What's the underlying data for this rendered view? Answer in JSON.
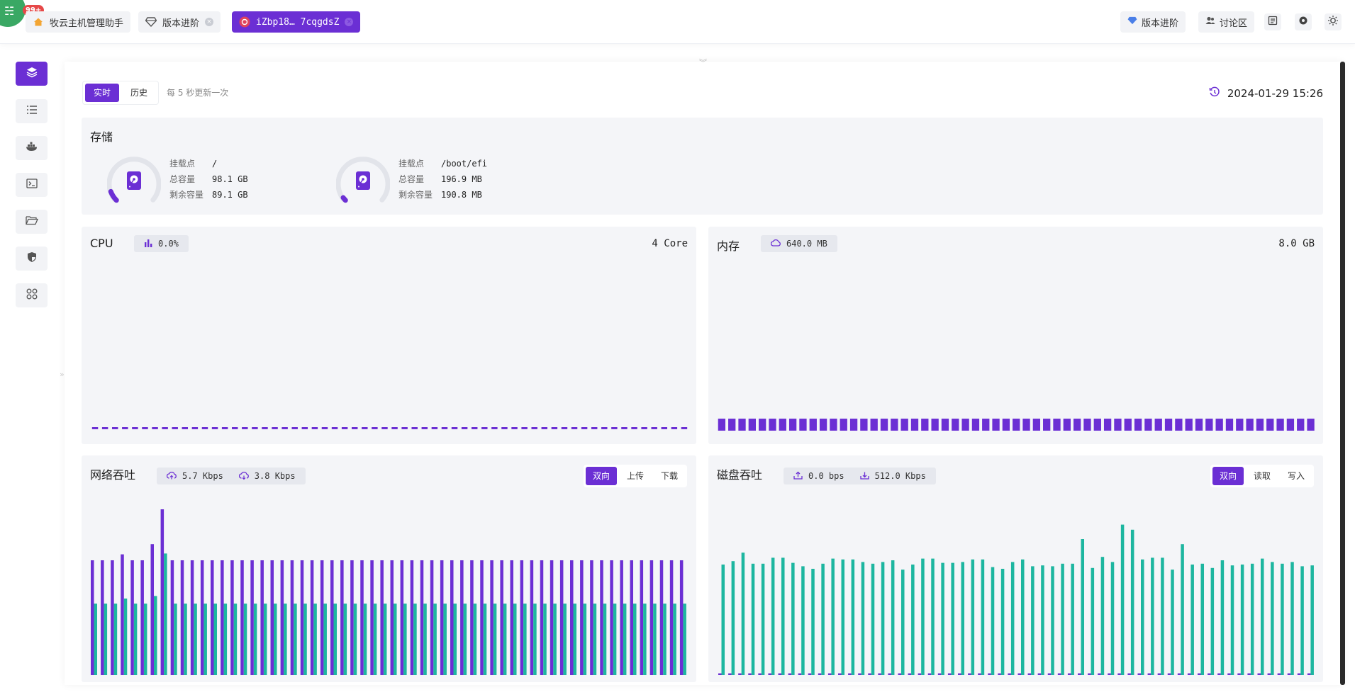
{
  "app": {
    "badge": "99+"
  },
  "tabs": [
    {
      "label": "牧云主机管理助手",
      "icon": "home-icon"
    },
    {
      "label": "版本进阶",
      "icon": "diamond-icon",
      "closable": true
    },
    {
      "label": "iZbp18… 7cqgdsZ",
      "icon": "server-icon",
      "closable": true,
      "active": true
    }
  ],
  "topbar_right": {
    "upgrade_label": "版本进阶",
    "forum_label": "讨论区",
    "icons": [
      "notes-icon",
      "settings-icon",
      "theme-sun-icon"
    ]
  },
  "sidebar": {
    "items": [
      {
        "icon": "layers-icon",
        "active": true
      },
      {
        "icon": "list-icon"
      },
      {
        "icon": "docker-icon"
      },
      {
        "icon": "terminal-icon"
      },
      {
        "icon": "folder-icon"
      },
      {
        "icon": "shield-icon"
      },
      {
        "icon": "apps-icon"
      }
    ]
  },
  "mode": {
    "realtime": "实时",
    "history": "历史",
    "update_note": "每 5 秒更新一次"
  },
  "timestamp": "2024-01-29 15:26",
  "storage": {
    "title": "存储",
    "labels": {
      "mount": "挂载点",
      "total": "总容量",
      "free": "剩余容量"
    },
    "disks": [
      {
        "mount": "/",
        "total": "98.1 GB",
        "free": "89.1 GB",
        "used_fraction": 0.09
      },
      {
        "mount": "/boot/efi",
        "total": "196.9 MB",
        "free": "190.8 MB",
        "used_fraction": 0.03
      }
    ]
  },
  "cpu": {
    "title": "CPU",
    "usage": "0.0%",
    "cores": "4 Core"
  },
  "memory": {
    "title": "内存",
    "used": "640.0 MB",
    "total": "8.0 GB"
  },
  "network": {
    "title": "网络吞吐",
    "upload": "5.7 Kbps",
    "download": "3.8 Kbps",
    "modes": [
      "双向",
      "上传",
      "下载"
    ],
    "active_mode": "双向"
  },
  "diskio": {
    "title": "磁盘吞吐",
    "read": "0.0 bps",
    "write": "512.0 Kbps",
    "modes": [
      "双向",
      "读取",
      "写入"
    ],
    "active_mode": "双向"
  },
  "colors": {
    "accent": "#6b2fd4",
    "teal": "#1db6a0",
    "card_bg": "#f4f5f8"
  },
  "chart_data": [
    {
      "type": "bar",
      "name": "cpu",
      "values": [
        0,
        0,
        0,
        0,
        0,
        0,
        0,
        0,
        0,
        0,
        0,
        0,
        0,
        0,
        0,
        0,
        0,
        0,
        0,
        0,
        0,
        0,
        0,
        0,
        0,
        0,
        0,
        0,
        0,
        0,
        0,
        0,
        0,
        0,
        0,
        0,
        0,
        0,
        0,
        0,
        0,
        0,
        0,
        0,
        0,
        0,
        0,
        0,
        0,
        0,
        0,
        0,
        0,
        0,
        0,
        0,
        0,
        0,
        0,
        0
      ]
    },
    {
      "type": "bar",
      "name": "memory",
      "values": [
        7.8,
        7.8,
        7.8,
        7.8,
        7.8,
        7.8,
        7.8,
        7.8,
        7.8,
        7.8,
        7.8,
        7.8,
        7.8,
        7.8,
        7.8,
        7.8,
        7.8,
        7.8,
        7.8,
        7.8,
        7.8,
        7.8,
        7.8,
        7.8,
        7.8,
        7.8,
        7.8,
        7.8,
        7.8,
        7.8,
        7.8,
        7.8,
        7.8,
        7.8,
        7.8,
        7.8,
        7.8,
        7.8,
        7.8,
        7.8,
        7.8,
        7.8,
        7.8,
        7.8,
        7.8,
        7.8,
        7.8,
        7.8,
        7.8,
        7.8,
        7.8,
        7.8,
        7.8,
        7.8,
        7.8,
        7.8,
        7.8,
        7.8,
        7.8
      ]
    },
    {
      "type": "bar",
      "name": "network",
      "series": [
        {
          "values": [
            135,
            135,
            135,
            142,
            135,
            135,
            154,
            195,
            135,
            135,
            135,
            135,
            135,
            135,
            135,
            135,
            135,
            135,
            135,
            135,
            135,
            135,
            135,
            135,
            135,
            135,
            135,
            135,
            135,
            135,
            135,
            135,
            135,
            135,
            135,
            135,
            135,
            135,
            135,
            135,
            135,
            135,
            135,
            135,
            135,
            135,
            135,
            135,
            135,
            135,
            135,
            135,
            135,
            135,
            135,
            135,
            135,
            135,
            135,
            135
          ]
        },
        {
          "values": [
            84,
            84,
            84,
            90,
            84,
            84,
            93,
            143,
            84,
            84,
            84,
            84,
            84,
            84,
            84,
            84,
            84,
            84,
            84,
            84,
            84,
            84,
            84,
            84,
            84,
            84,
            84,
            84,
            84,
            84,
            84,
            84,
            84,
            84,
            84,
            84,
            84,
            84,
            84,
            84,
            84,
            84,
            84,
            84,
            84,
            84,
            84,
            84,
            84,
            84,
            84,
            84,
            84,
            84,
            84,
            84,
            84,
            84,
            84,
            84
          ]
        }
      ]
    },
    {
      "type": "bar",
      "name": "diskio",
      "series": [
        {
          "values": [
            2,
            2,
            2,
            2,
            2,
            2,
            2,
            2,
            2,
            2,
            2,
            2,
            2,
            2,
            2,
            2,
            2,
            2,
            2,
            2,
            2,
            2,
            2,
            2,
            2,
            2,
            2,
            2,
            2,
            2,
            2,
            2,
            2,
            2,
            2,
            2,
            2,
            2,
            2,
            2,
            2,
            2,
            2,
            2,
            2,
            2,
            2,
            2,
            2,
            2,
            2,
            2,
            2,
            2,
            2,
            2,
            2,
            2,
            2,
            2
          ]
        },
        {
          "values": [
            130,
            134,
            144,
            131,
            131,
            138,
            138,
            132,
            128,
            125,
            131,
            137,
            136,
            136,
            133,
            131,
            133,
            135,
            124,
            130,
            137,
            137,
            132,
            132,
            133,
            136,
            136,
            127,
            125,
            133,
            136,
            128,
            129,
            128,
            131,
            131,
            160,
            126,
            139,
            133,
            177,
            171,
            136,
            138,
            138,
            124,
            154,
            130,
            131,
            126,
            135,
            129,
            130,
            131,
            137,
            133,
            131,
            133,
            128,
            129
          ]
        }
      ]
    }
  ]
}
